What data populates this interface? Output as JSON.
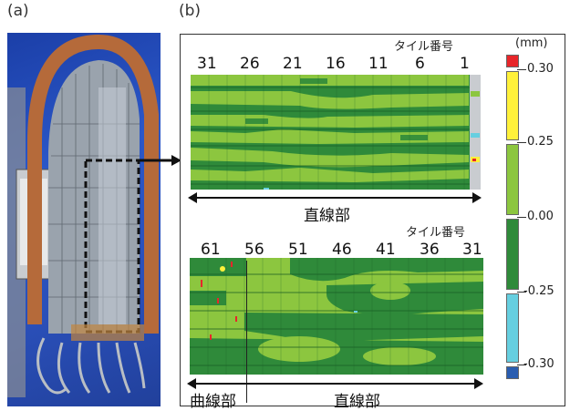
{
  "panel_a": {
    "label": "(a)"
  },
  "panel_b": {
    "label": "(b)"
  },
  "top_map": {
    "tile_caption": "タイル番号",
    "tile_numbers": [
      "31",
      "26",
      "21",
      "16",
      "11",
      "6",
      "1"
    ],
    "section_label": "直線部"
  },
  "bottom_map": {
    "tile_caption": "タイル番号",
    "tile_numbers": [
      "61",
      "56",
      "51",
      "46",
      "41",
      "36",
      "31"
    ],
    "section_curve_label": "曲線部",
    "section_straight_label": "直線部"
  },
  "legend": {
    "unit": "(mm)",
    "ticks": [
      "0.30",
      "0.25",
      "0.00",
      "-0.25",
      "-0.30"
    ],
    "colors": {
      "red": "#e8262a",
      "yellow": "#fff13a",
      "light_green": "#8cc63f",
      "dark_green": "#2f8a3a",
      "light_blue": "#66cfe0",
      "blue": "#2a5db0"
    }
  }
}
